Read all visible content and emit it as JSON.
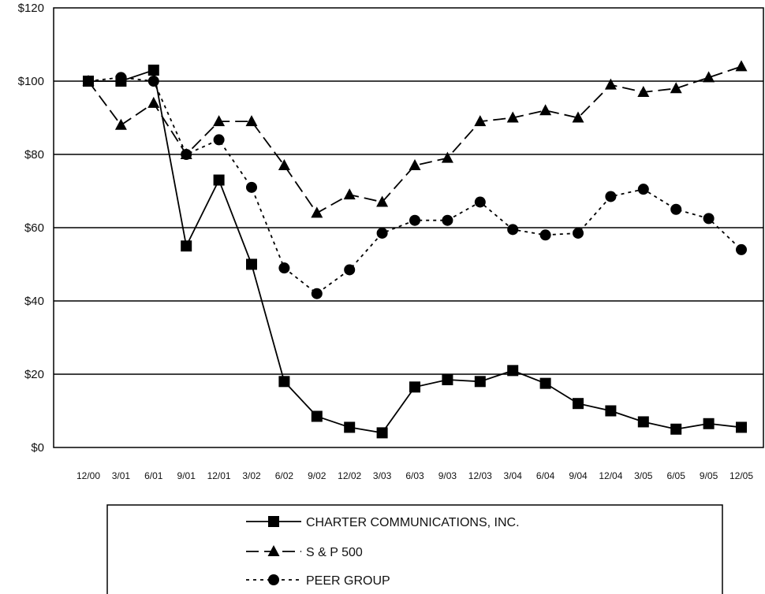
{
  "chart_data": {
    "type": "line",
    "title": "",
    "xlabel": "",
    "ylabel": "",
    "ylim": [
      0,
      120
    ],
    "y_ticks": [
      "$0",
      "$20",
      "$40",
      "$60",
      "$80",
      "$100",
      "$120"
    ],
    "y_tick_values": [
      0,
      20,
      40,
      60,
      80,
      100,
      120
    ],
    "categories": [
      "12/00",
      "3/01",
      "6/01",
      "9/01",
      "12/01",
      "3/02",
      "6/02",
      "9/02",
      "12/02",
      "3/03",
      "6/03",
      "9/03",
      "12/03",
      "3/04",
      "6/04",
      "9/04",
      "12/04",
      "3/05",
      "6/05",
      "9/05",
      "12/05"
    ],
    "grid": "horizontal",
    "legend_position": "bottom",
    "series": [
      {
        "name": "CHARTER COMMUNICATIONS, INC.",
        "line_style": "solid",
        "marker": "square",
        "values": [
          100,
          100,
          103,
          55,
          73,
          50,
          18,
          8.5,
          5.5,
          4,
          16.5,
          18.5,
          18,
          21,
          17.5,
          12,
          10,
          7,
          5,
          6.5,
          5.5
        ]
      },
      {
        "name": "S & P 500",
        "line_style": "dashed",
        "marker": "triangle",
        "values": [
          100,
          88,
          94,
          80,
          89,
          89,
          77,
          64,
          69,
          67,
          77,
          79,
          89,
          90,
          92,
          90,
          99,
          97,
          98,
          101,
          104
        ]
      },
      {
        "name": "PEER GROUP",
        "line_style": "dotted",
        "marker": "circle",
        "values": [
          100,
          101,
          100,
          80,
          84,
          71,
          49,
          42,
          48.5,
          58.5,
          62,
          62,
          67,
          59.5,
          58,
          58.5,
          68.5,
          70.5,
          65,
          62.5,
          54
        ]
      }
    ]
  }
}
